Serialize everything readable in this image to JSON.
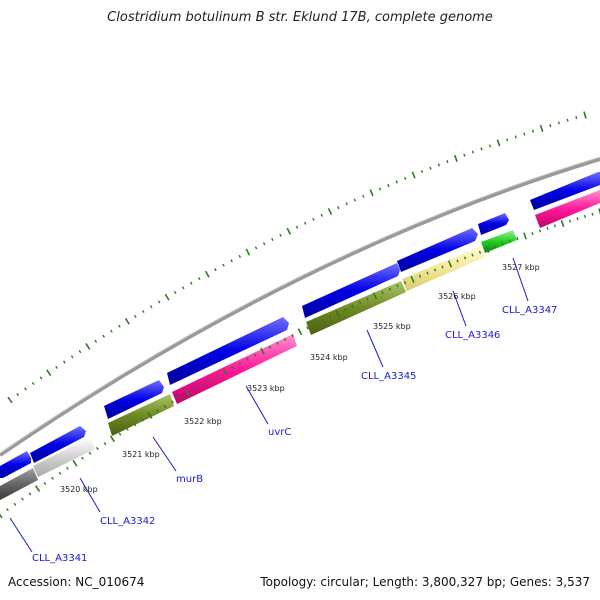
{
  "title": "Clostridium botulinum B str. Eklund 17B, complete genome",
  "footer": {
    "accession": "Accession: NC_010674",
    "topology": "Topology: circular; Length: 3,800,327 bp; Genes: 3,537"
  },
  "colors": {
    "backbone": "#8c8c8c",
    "cds": "#0000ee",
    "tick": "#2e7d1e",
    "label": "#1a1acc"
  },
  "scale_labels": [
    "3520 kbp",
    "3521 kbp",
    "3522 kbp",
    "3523 kbp",
    "3524 kbp",
    "3525 kbp",
    "3526 kbp",
    "3527 kbp"
  ],
  "gene_labels": [
    "CLL_A3341",
    "CLL_A3342",
    "murB",
    "uvrC",
    "CLL_A3345",
    "CLL_A3346",
    "CLL_A3347"
  ]
}
